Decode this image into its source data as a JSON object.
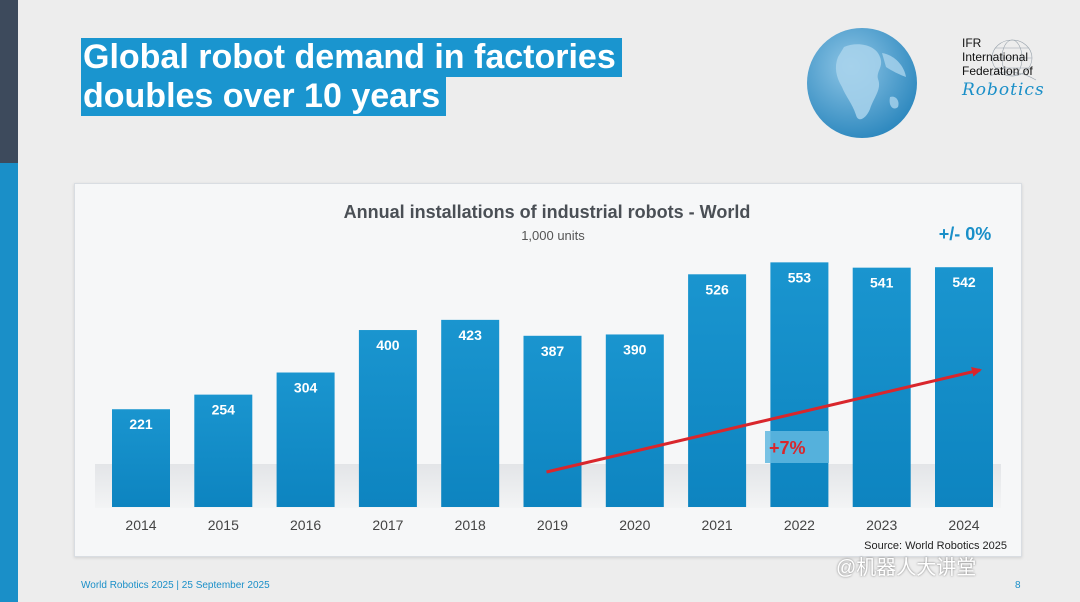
{
  "slide": {
    "title_line1": "Global robot demand in factories",
    "title_line2": "doubles over 10 years",
    "footer_left": "World Robotics 2025  | 25 September 2025",
    "page_number": "8",
    "watermark": "@机器人大讲堂"
  },
  "logo": {
    "line1": "IFR",
    "line2": "International",
    "line3": "Federation of",
    "line4": "Robotics"
  },
  "chart_data": {
    "type": "bar",
    "title": "Annual installations of industrial robots - World",
    "subtitle": "1,000 units",
    "categories": [
      "2014",
      "2015",
      "2016",
      "2017",
      "2018",
      "2019",
      "2020",
      "2021",
      "2022",
      "2023",
      "2024"
    ],
    "values": [
      221,
      254,
      304,
      400,
      423,
      387,
      390,
      526,
      553,
      541,
      542
    ],
    "annotations": {
      "trend_label": "+7%",
      "change_label": "+/- 0%",
      "trend_from": "2019",
      "trend_to": "2024"
    },
    "source": "Source: World Robotics 2025",
    "ylim": [
      0,
      600
    ],
    "colors": {
      "bar": "#1a95cf",
      "trend": "#d9262c",
      "change": "#1a8fc8"
    }
  }
}
